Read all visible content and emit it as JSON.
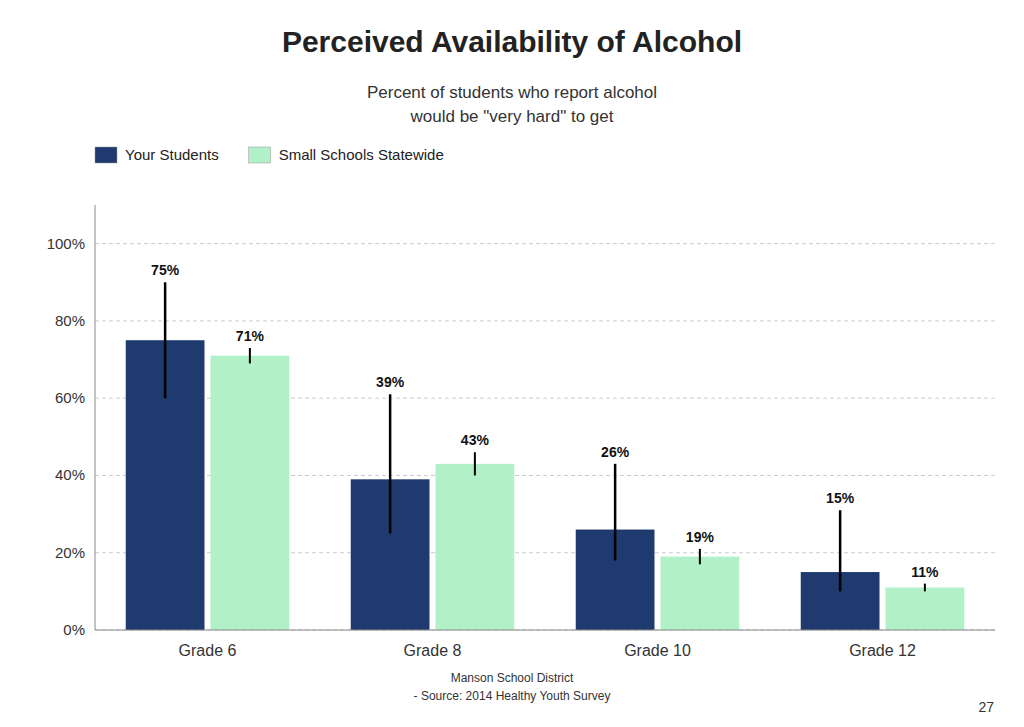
{
  "chart_data": {
    "type": "bar",
    "title": "Perceived Availability of Alcohol",
    "subtitle": "Percent of students who report alcohol\nwould be \"very hard\" to get",
    "categories": [
      "Grade 6",
      "Grade 8",
      "Grade 10",
      "Grade 12"
    ],
    "series": [
      {
        "name": "Your Students",
        "color": "#1e3a6e",
        "values": [
          75,
          39,
          26,
          15
        ],
        "value_labels": [
          "75%",
          "39%",
          "26%",
          "15%"
        ],
        "error_low": [
          15,
          14,
          8,
          5
        ],
        "error_high": [
          15,
          22,
          17,
          16
        ]
      },
      {
        "name": "Small Schools Statewide",
        "color": "#b2f0c8",
        "values": [
          71,
          43,
          19,
          11
        ],
        "value_labels": [
          "71%",
          "43%",
          "19%",
          "11%"
        ],
        "error_low": [
          2,
          3,
          2,
          1
        ],
        "error_high": [
          2,
          3,
          2,
          1
        ]
      }
    ],
    "ylim": [
      0,
      110
    ],
    "yticks": [
      {
        "value": 0,
        "label": "0%"
      },
      {
        "value": 20,
        "label": "20%"
      },
      {
        "value": 40,
        "label": "40%"
      },
      {
        "value": 60,
        "label": "60%"
      },
      {
        "value": 80,
        "label": "80%"
      },
      {
        "value": 100,
        "label": "100%"
      }
    ],
    "grid": true,
    "legend": "upper left",
    "data_labels": true,
    "annotations": [
      "Manson School District",
      "- Source: 2014 Healthy Youth Survey",
      "27"
    ]
  }
}
